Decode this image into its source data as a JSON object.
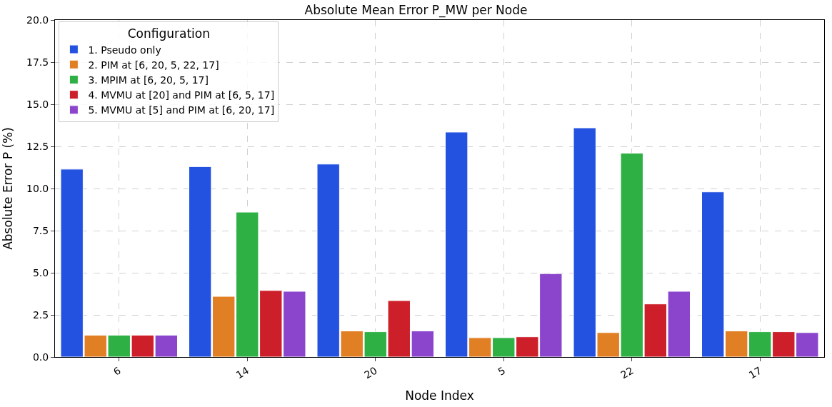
{
  "chart_data": {
    "type": "bar",
    "title": "Absolute Mean Error P_MW per Node",
    "xlabel": "Node Index",
    "ylabel": "Absolute Error P (%)",
    "legend_title": "Configuration",
    "categories": [
      "6",
      "14",
      "20",
      "5",
      "22",
      "17"
    ],
    "series": [
      {
        "name": "1. Pseudo only",
        "color": "#2351e0",
        "values": [
          11.15,
          11.3,
          11.45,
          13.35,
          13.6,
          9.8
        ]
      },
      {
        "name": "2. PIM at [6, 20, 5, 22, 17]",
        "color": "#e07f24",
        "values": [
          1.3,
          3.6,
          1.55,
          1.15,
          1.45,
          1.55
        ]
      },
      {
        "name": "3. MPIM at [6, 20, 5, 17]",
        "color": "#2eb044",
        "values": [
          1.3,
          8.6,
          1.5,
          1.15,
          12.1,
          1.5
        ]
      },
      {
        "name": "4. MVMU at [20] and PIM at [6, 5, 17]",
        "color": "#cc1f2a",
        "values": [
          1.3,
          3.95,
          3.35,
          1.2,
          3.15,
          1.5
        ]
      },
      {
        "name": "5. MVMU at [5] and PIM at [6, 20, 17]",
        "color": "#8b44cc",
        "values": [
          1.3,
          3.9,
          1.55,
          4.95,
          3.9,
          1.45
        ]
      }
    ],
    "ylim": [
      0,
      20
    ],
    "yticks": [
      {
        "value": 0,
        "label": "0.0"
      },
      {
        "value": 2.5,
        "label": "2.5"
      },
      {
        "value": 5,
        "label": "5.0"
      },
      {
        "value": 7.5,
        "label": "7.5"
      },
      {
        "value": 10,
        "label": "10.0"
      },
      {
        "value": 12.5,
        "label": "12.5"
      },
      {
        "value": 15,
        "label": "15.0"
      },
      {
        "value": 17.5,
        "label": "17.5"
      },
      {
        "value": 20,
        "label": "20.0"
      }
    ],
    "grid": true,
    "legend": "top left"
  }
}
